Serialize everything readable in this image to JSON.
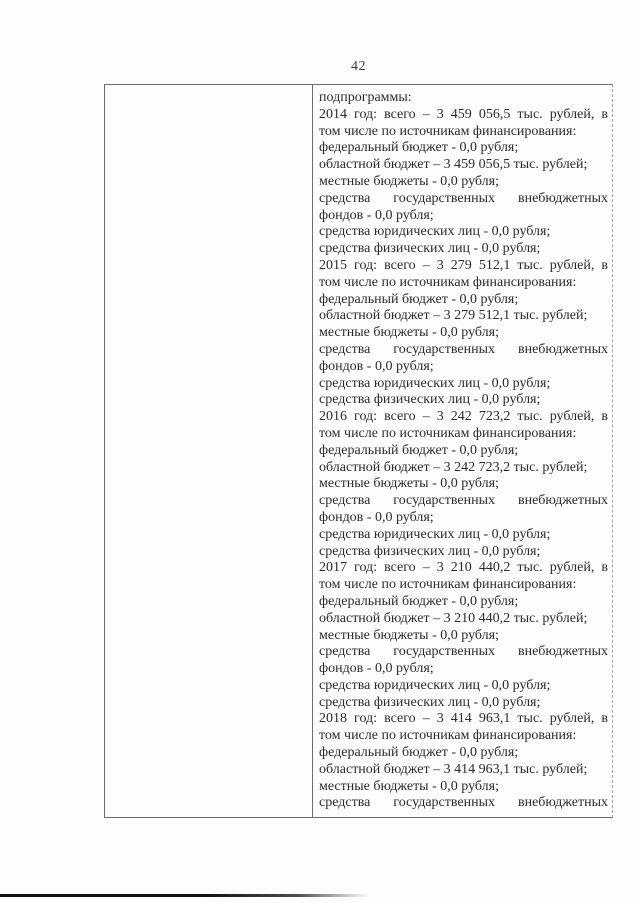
{
  "page": {
    "number": "42"
  },
  "colors": {
    "page-bg": "#fdfdfc",
    "text": "#2b2b2b",
    "border": "#6e6e6e",
    "border-light": "#a8a8a8",
    "rule": "#111111"
  },
  "table": {
    "left_cell": {
      "content": ""
    },
    "right_cell": {
      "lines": [
        {
          "text": "подпрограммы:",
          "stretch": false
        },
        {
          "text": "2014 год: всего – 3 459 056,5 тыс. рублей, в",
          "stretch": true
        },
        {
          "text": "том числе по источникам финансирования:",
          "stretch": false
        },
        {
          "text": "федеральный бюджет - 0,0 рубля;",
          "stretch": false
        },
        {
          "text": "областной бюджет – 3 459 056,5 тыс. рублей;",
          "stretch": false
        },
        {
          "text": "местные бюджеты - 0,0 рубля;",
          "stretch": false
        },
        {
          "text": "средства государственных внебюджетных",
          "stretch": true
        },
        {
          "text": "фондов - 0,0 рубля;",
          "stretch": false
        },
        {
          "text": "средства юридических лиц - 0,0 рубля;",
          "stretch": false
        },
        {
          "text": "средства физических лиц - 0,0 рубля;",
          "stretch": false
        },
        {
          "text": "2015 год: всего – 3 279 512,1 тыс. рублей, в",
          "stretch": true
        },
        {
          "text": "том числе по источникам финансирования:",
          "stretch": false
        },
        {
          "text": "федеральный бюджет - 0,0 рубля;",
          "stretch": false
        },
        {
          "text": "областной бюджет – 3 279 512,1 тыс. рублей;",
          "stretch": false
        },
        {
          "text": "местные бюджеты - 0,0 рубля;",
          "stretch": false
        },
        {
          "text": "средства государственных внебюджетных",
          "stretch": true
        },
        {
          "text": "фондов - 0,0 рубля;",
          "stretch": false
        },
        {
          "text": "средства юридических лиц - 0,0 рубля;",
          "stretch": false
        },
        {
          "text": "средства физических лиц - 0,0 рубля;",
          "stretch": false
        },
        {
          "text": "2016 год: всего – 3 242 723,2 тыс. рублей, в",
          "stretch": true
        },
        {
          "text": "том числе по источникам финансирования:",
          "stretch": false
        },
        {
          "text": "федеральный бюджет - 0,0 рубля;",
          "stretch": false
        },
        {
          "text": "областной бюджет – 3 242 723,2 тыс. рублей;",
          "stretch": false
        },
        {
          "text": "местные бюджеты - 0,0 рубля;",
          "stretch": false
        },
        {
          "text": "средства государственных внебюджетных",
          "stretch": true
        },
        {
          "text": "фондов - 0,0 рубля;",
          "stretch": false
        },
        {
          "text": "средства юридических лиц - 0,0 рубля;",
          "stretch": false
        },
        {
          "text": "средства физических лиц - 0,0 рубля;",
          "stretch": false
        },
        {
          "text": "2017 год: всего – 3 210 440,2 тыс. рублей, в",
          "stretch": true
        },
        {
          "text": "том числе по источникам финансирования:",
          "stretch": false
        },
        {
          "text": "федеральный бюджет - 0,0 рубля;",
          "stretch": false
        },
        {
          "text": "областной бюджет – 3 210 440,2 тыс. рублей;",
          "stretch": false
        },
        {
          "text": "местные бюджеты - 0,0 рубля;",
          "stretch": false
        },
        {
          "text": "средства государственных внебюджетных",
          "stretch": true
        },
        {
          "text": "фондов - 0,0 рубля;",
          "stretch": false
        },
        {
          "text": "средства юридических лиц - 0,0 рубля;",
          "stretch": false
        },
        {
          "text": "средства физических лиц - 0,0 рубля;",
          "stretch": false
        },
        {
          "text": "2018 год: всего – 3 414 963,1 тыс. рублей, в",
          "stretch": true
        },
        {
          "text": "том числе по источникам финансирования:",
          "stretch": false
        },
        {
          "text": "федеральный бюджет - 0,0 рубля;",
          "stretch": false
        },
        {
          "text": "областной бюджет – 3 414 963,1 тыс. рублей;",
          "stretch": false
        },
        {
          "text": "местные бюджеты - 0,0 рубля;",
          "stretch": false
        },
        {
          "text": "средства государственных внебюджетных",
          "stretch": true
        }
      ]
    }
  }
}
